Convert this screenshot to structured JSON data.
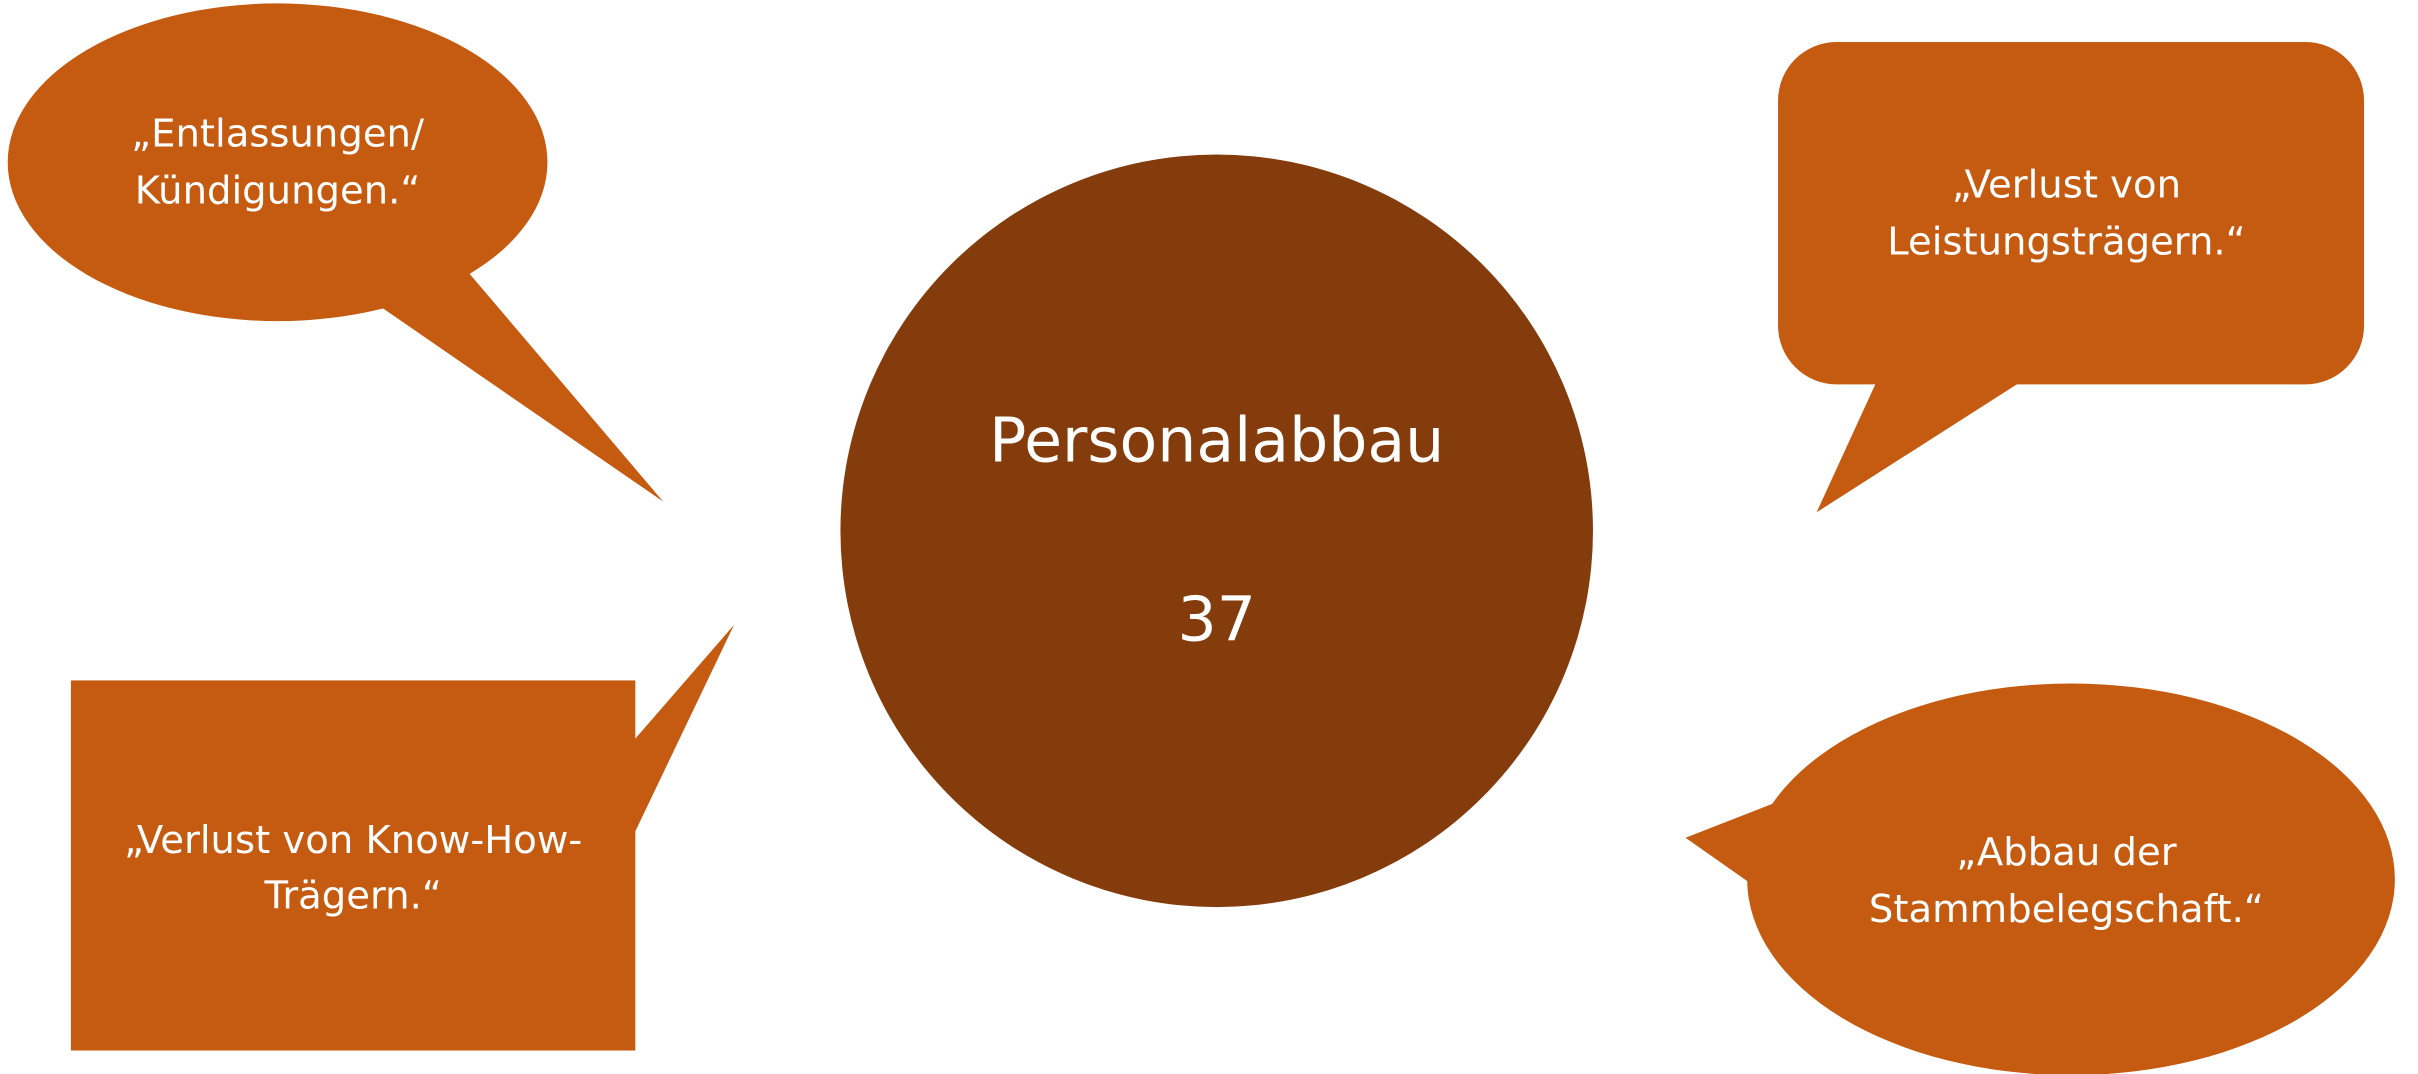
{
  "center": {
    "title": "Personalabbau",
    "value": "37"
  },
  "bubbles": [
    {
      "lines": [
        "„Entlassungen/",
        "Kündigungen.“"
      ]
    },
    {
      "lines": [
        "„Verlust von",
        "Leistungsträgern.“"
      ]
    },
    {
      "lines": [
        "„Verlust von Know-How-",
        "Trägern.“"
      ]
    },
    {
      "lines": [
        "„Abbau der",
        "Stammbelegschaft.“"
      ]
    }
  ]
}
